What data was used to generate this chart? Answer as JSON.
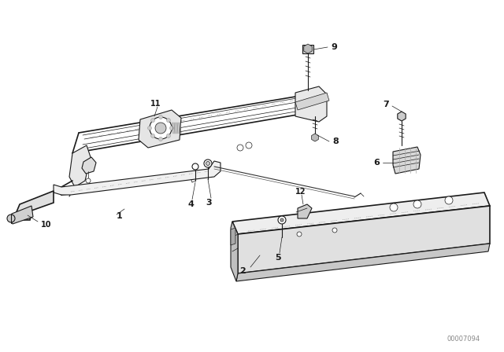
{
  "bg_color": "#ffffff",
  "line_color": "#1a1a1a",
  "figure_width": 6.4,
  "figure_height": 4.48,
  "dpi": 100,
  "watermark": "00007094"
}
